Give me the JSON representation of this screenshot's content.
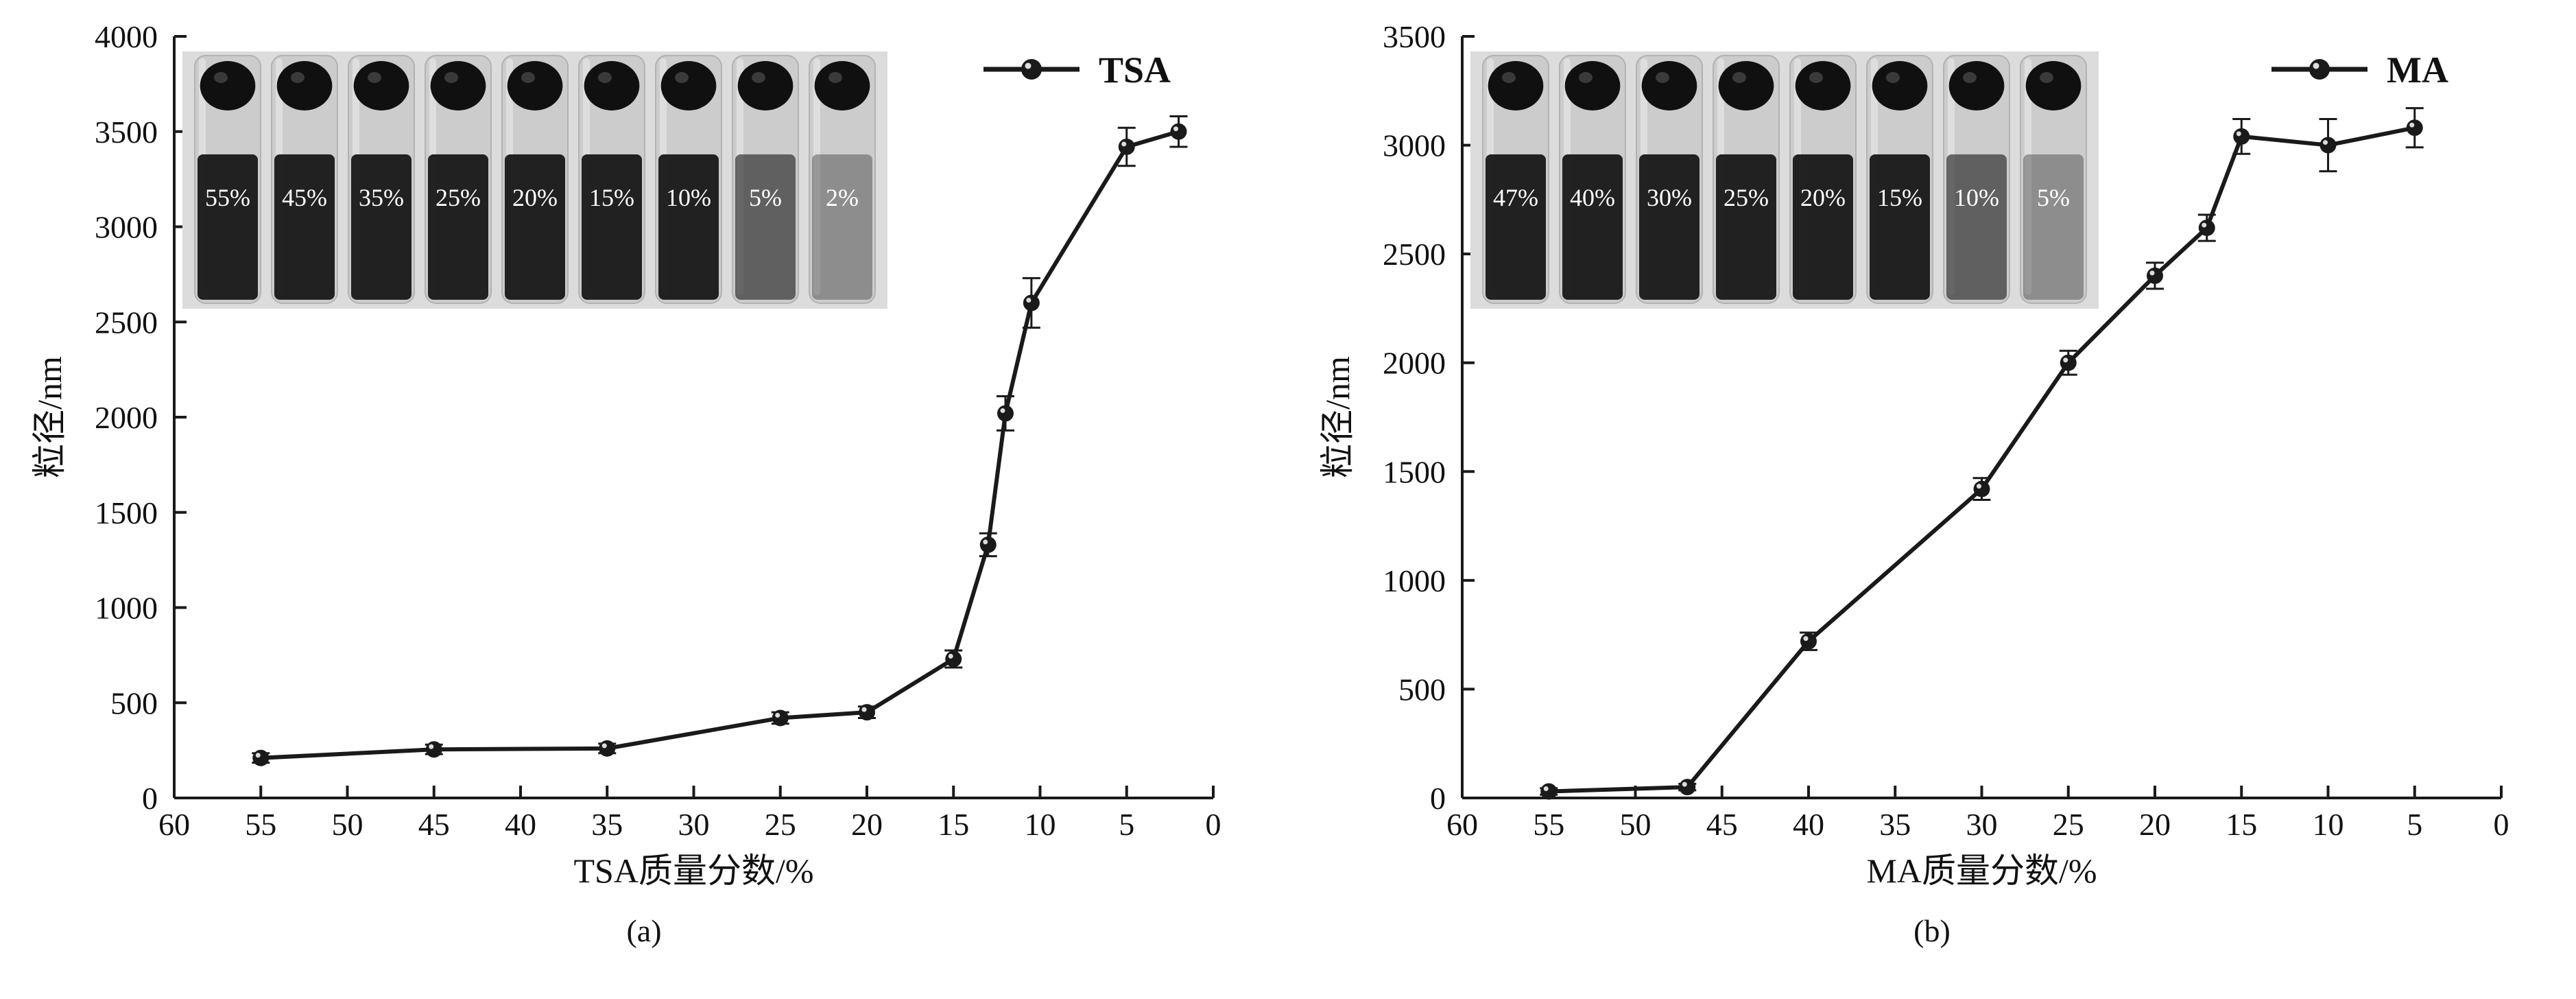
{
  "ink_color": "#1a1a1a",
  "chart_data": [
    {
      "type": "line",
      "legend": "TSA",
      "caption": "(a)",
      "xlabel": "TSA质量分数/%",
      "ylabel": "粒径/nm",
      "xlim": [
        60,
        0
      ],
      "ylim": [
        0,
        4000
      ],
      "xticks": [
        60,
        55,
        50,
        45,
        40,
        35,
        30,
        25,
        20,
        15,
        10,
        5,
        0
      ],
      "yticks": [
        0,
        500,
        1000,
        1500,
        2000,
        2500,
        3000,
        3500,
        4000
      ],
      "x": [
        55,
        45,
        35,
        25,
        20,
        15,
        13,
        12,
        10.5,
        5,
        2
      ],
      "y": [
        210,
        255,
        260,
        420,
        450,
        730,
        1330,
        2020,
        2600,
        3420,
        3500
      ],
      "yerr": [
        25,
        25,
        25,
        30,
        30,
        45,
        60,
        90,
        130,
        100,
        80
      ],
      "grid": false,
      "legend_position": "top-right",
      "inset_labels": [
        "55%",
        "45%",
        "35%",
        "25%",
        "20%",
        "15%",
        "10%",
        "5%",
        "2%"
      ]
    },
    {
      "type": "line",
      "legend": "MA",
      "caption": "(b)",
      "xlabel": "MA质量分数/%",
      "ylabel": "粒径/nm",
      "xlim": [
        60,
        0
      ],
      "ylim": [
        0,
        3500
      ],
      "xticks": [
        60,
        55,
        50,
        45,
        40,
        35,
        30,
        25,
        20,
        15,
        10,
        5,
        0
      ],
      "yticks": [
        0,
        500,
        1000,
        1500,
        2000,
        2500,
        3000,
        3500
      ],
      "x": [
        55,
        47,
        40,
        30,
        25,
        20,
        17,
        15,
        10,
        5
      ],
      "y": [
        30,
        50,
        720,
        1420,
        2000,
        2400,
        2620,
        3040,
        3000,
        3080
      ],
      "yerr": [
        15,
        15,
        40,
        50,
        55,
        60,
        60,
        80,
        120,
        90
      ],
      "grid": false,
      "legend_position": "top-right",
      "inset_labels": [
        "47%",
        "40%",
        "30%",
        "25%",
        "20%",
        "15%",
        "10%",
        "5%"
      ]
    }
  ]
}
